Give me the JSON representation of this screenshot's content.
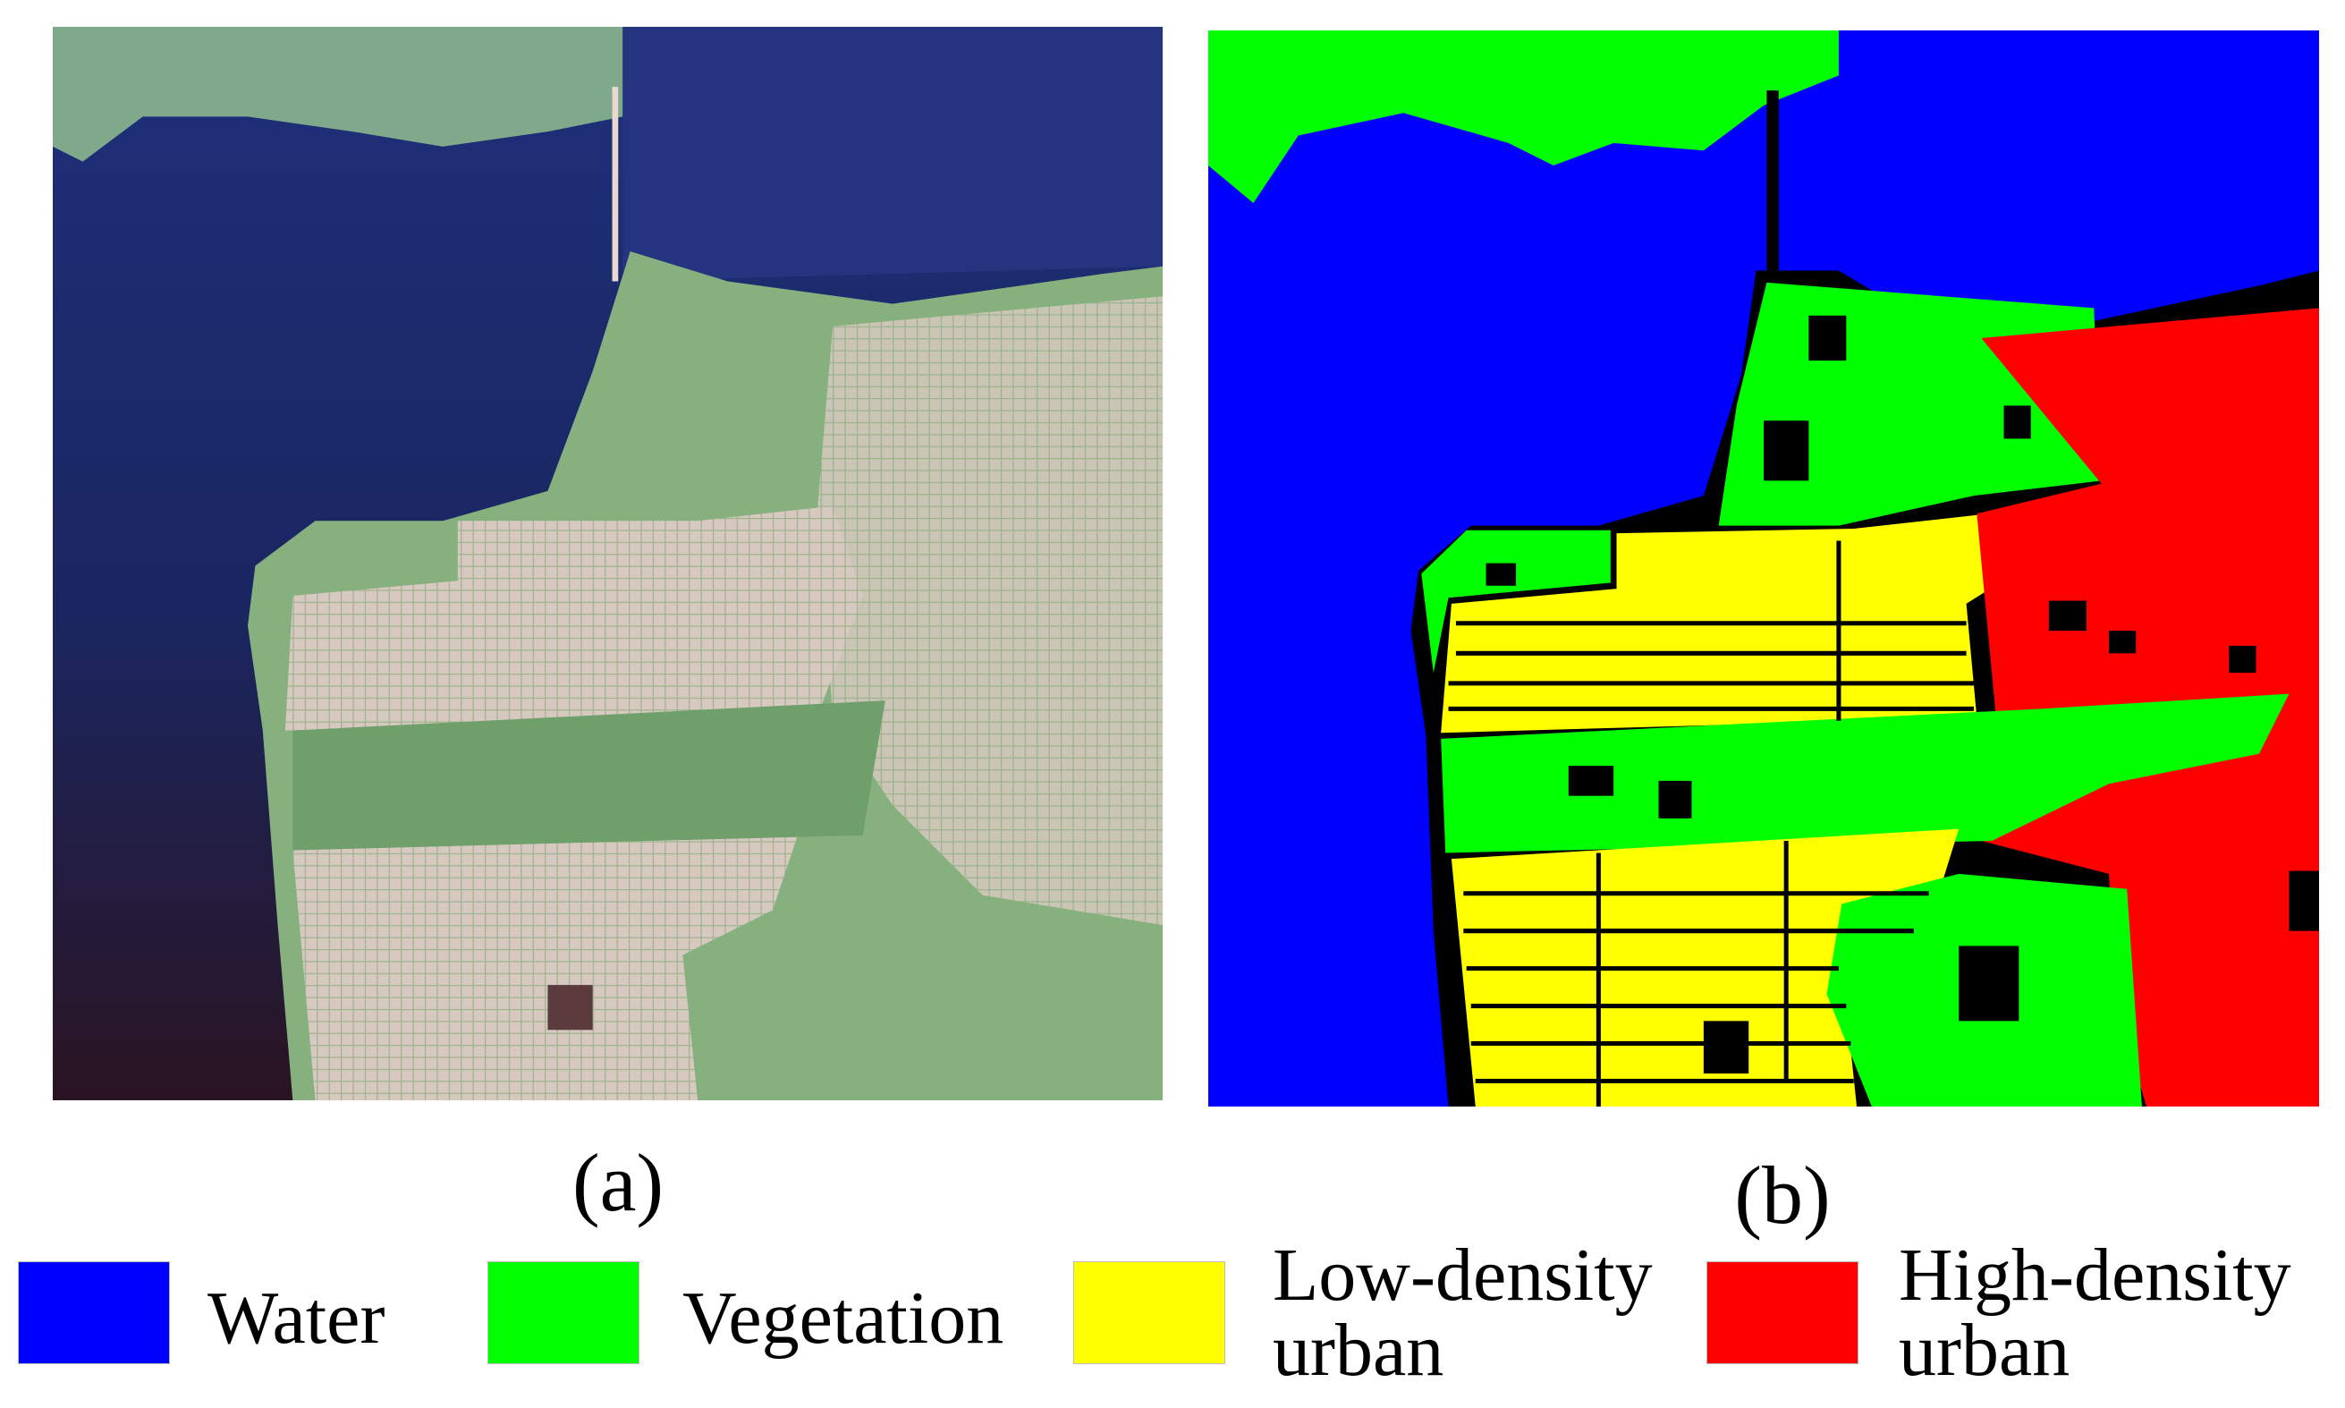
{
  "panels": [
    {
      "label": "(a)"
    },
    {
      "label": "(b)"
    }
  ],
  "legend": [
    {
      "lines": [
        "Water"
      ],
      "color": "#0000ff"
    },
    {
      "lines": [
        "Vegetation"
      ],
      "color": "#00ff00"
    },
    {
      "lines": [
        "Low-density",
        "urban"
      ],
      "color": "#ffff00"
    },
    {
      "lines": [
        "High-density",
        "urban"
      ],
      "color": "#ff0000"
    }
  ]
}
